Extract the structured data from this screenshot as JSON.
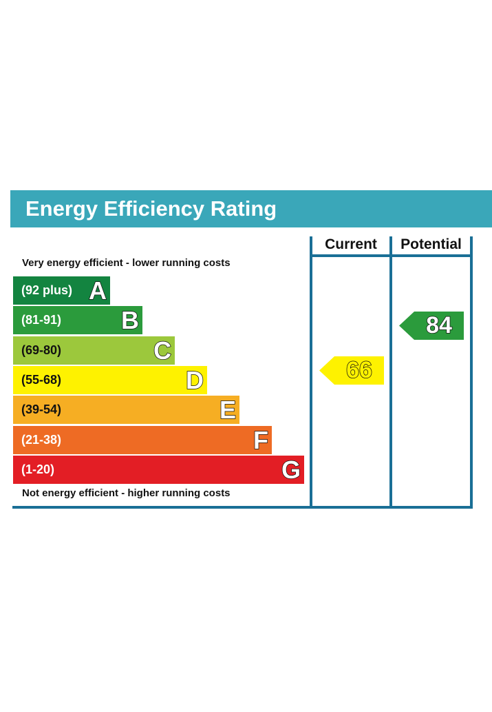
{
  "title": "Energy Efficiency Rating",
  "columns": {
    "current": "Current",
    "potential": "Potential"
  },
  "scale": {
    "top_note": "Very energy efficient - lower running costs",
    "bottom_note": "Not energy efficient - higher running costs"
  },
  "chart_data": {
    "type": "bar",
    "title": "Energy Efficiency Rating",
    "categories": [
      "A",
      "B",
      "C",
      "D",
      "E",
      "F",
      "G"
    ],
    "bands": [
      {
        "letter": "A",
        "range": "(92 plus)",
        "color": "#138440",
        "text_color": "#ffffff"
      },
      {
        "letter": "B",
        "range": "(81-91)",
        "color": "#2b9b3c",
        "text_color": "#ffffff"
      },
      {
        "letter": "C",
        "range": "(69-80)",
        "color": "#9cc83c",
        "text_color": "#111111"
      },
      {
        "letter": "D",
        "range": "(55-68)",
        "color": "#fef200",
        "text_color": "#111111"
      },
      {
        "letter": "E",
        "range": "(39-54)",
        "color": "#f6ae23",
        "text_color": "#111111"
      },
      {
        "letter": "F",
        "range": "(21-38)",
        "color": "#ee6b24",
        "text_color": "#ffffff"
      },
      {
        "letter": "G",
        "range": "(1-20)",
        "color": "#e31e25",
        "text_color": "#ffffff"
      }
    ],
    "current": {
      "label": "Current",
      "value": 66,
      "band": "D",
      "color": "#fef200"
    },
    "potential": {
      "label": "Potential",
      "value": 84,
      "band": "B",
      "color": "#2b9b3c"
    }
  },
  "colors": {
    "banner": "#3aa7b9",
    "frame": "#1a6f96"
  }
}
